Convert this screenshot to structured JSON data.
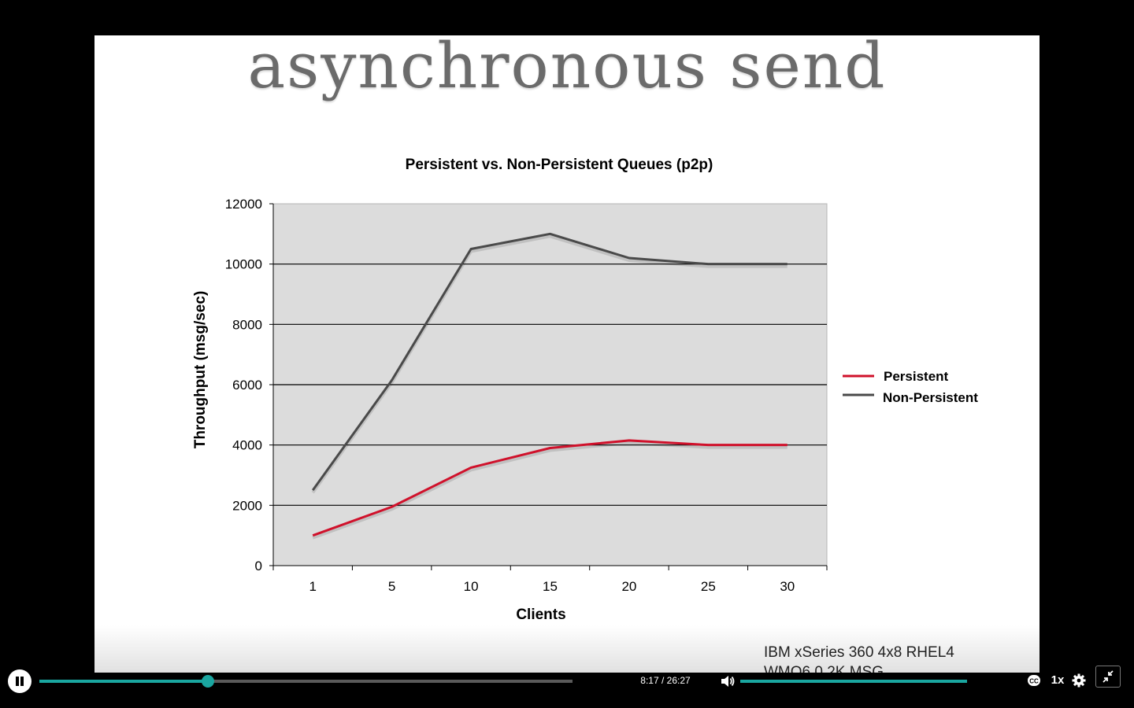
{
  "slide": {
    "title": "asynchronous send",
    "footnote_line1": "IBM xSeries 360 4x8 RHEL4",
    "footnote_line2": "WMQ6.0 2K MSG"
  },
  "chart_data": {
    "type": "line",
    "title": "Persistent vs. Non-Persistent Queues (p2p)",
    "xlabel": "Clients",
    "ylabel": "Throughput (msg/sec)",
    "categories": [
      "1",
      "5",
      "10",
      "15",
      "20",
      "25",
      "30"
    ],
    "yticks": [
      "0",
      "2000",
      "4000",
      "6000",
      "8000",
      "10000",
      "12000"
    ],
    "ylim": [
      0,
      12000
    ],
    "grid": true,
    "legend_position": "right",
    "series": [
      {
        "name": "Persistent",
        "color": "#d0112b",
        "values": [
          1000,
          1950,
          3250,
          3900,
          4150,
          4000,
          4000
        ]
      },
      {
        "name": "Non-Persistent",
        "color": "#4a4a4a",
        "values": [
          2500,
          6150,
          10500,
          11000,
          10200,
          10000,
          10000
        ]
      }
    ],
    "plot_background": "#dcdcdc"
  },
  "player": {
    "time_display": "8:17 / 26:27",
    "progress_fraction": 0.316,
    "volume_fraction": 1.0,
    "speed_label": "1x",
    "accent_color": "#1aa6a0",
    "icons": {
      "play": "pause-icon",
      "volume": "volume-icon",
      "captions": "closed-captions-icon",
      "settings": "gear-icon",
      "fullscreen": "exit-fullscreen-icon"
    }
  }
}
